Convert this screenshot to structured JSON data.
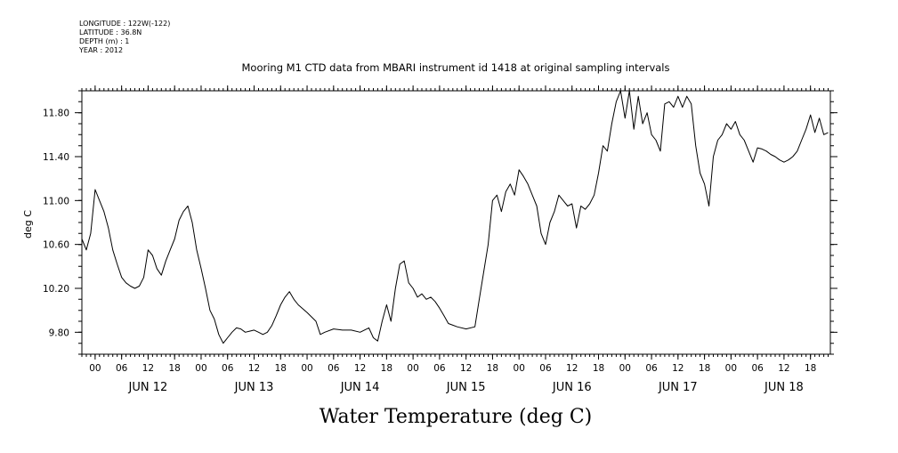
{
  "metadata": {
    "longitude": "LONGITUDE : 122W(-122)",
    "latitude": "LATITUDE : 36.8N",
    "depth": "DEPTH (m) : 1",
    "year": "YEAR : 2012"
  },
  "chart_data": {
    "type": "line",
    "title": "Mooring M1 CTD data from MBARI instrument id 1418 at original sampling intervals",
    "xlabel": "Water Temperature (deg C)",
    "ylabel": "deg C",
    "xlim": [
      "2012-06-11T21:00",
      "2012-06-18T22:30"
    ],
    "ylim": [
      9.6,
      12.0
    ],
    "y_ticks": [
      9.8,
      10.2,
      10.6,
      11.0,
      11.4,
      11.8
    ],
    "y_tick_labels": [
      "9.80",
      "10.20",
      "10.60",
      "11.00",
      "11.40",
      "11.80"
    ],
    "x_hour_ticks": [
      "2012-06-12T00:00",
      "2012-06-12T06:00",
      "2012-06-12T12:00",
      "2012-06-12T18:00",
      "2012-06-13T00:00",
      "2012-06-13T06:00",
      "2012-06-13T12:00",
      "2012-06-13T18:00",
      "2012-06-14T00:00",
      "2012-06-14T06:00",
      "2012-06-14T12:00",
      "2012-06-14T18:00",
      "2012-06-15T00:00",
      "2012-06-15T06:00",
      "2012-06-15T12:00",
      "2012-06-15T18:00",
      "2012-06-16T00:00",
      "2012-06-16T06:00",
      "2012-06-16T12:00",
      "2012-06-16T18:00",
      "2012-06-17T00:00",
      "2012-06-17T06:00",
      "2012-06-17T12:00",
      "2012-06-17T18:00",
      "2012-06-18T00:00",
      "2012-06-18T06:00",
      "2012-06-18T12:00",
      "2012-06-18T18:00"
    ],
    "x_hour_labels": [
      "00",
      "06",
      "12",
      "18",
      "00",
      "06",
      "12",
      "18",
      "00",
      "06",
      "12",
      "18",
      "00",
      "06",
      "12",
      "18",
      "00",
      "06",
      "12",
      "18",
      "00",
      "06",
      "12",
      "18",
      "00",
      "06",
      "12",
      "18"
    ],
    "x_day_ticks": [
      "2012-06-12T12:00",
      "2012-06-13T12:00",
      "2012-06-14T12:00",
      "2012-06-15T12:00",
      "2012-06-16T12:00",
      "2012-06-17T12:00",
      "2012-06-18T12:00"
    ],
    "x_day_labels": [
      "JUN 12",
      "JUN 13",
      "JUN 14",
      "JUN 15",
      "JUN 16",
      "JUN 17",
      "JUN 18"
    ],
    "grid": false,
    "series": [
      {
        "color": "#000000",
        "points": [
          [
            "2012-06-11T21:00",
            10.65
          ],
          [
            "2012-06-11T22:00",
            10.55
          ],
          [
            "2012-06-11T23:00",
            10.7
          ],
          [
            "2012-06-12T00:00",
            11.1
          ],
          [
            "2012-06-12T01:00",
            11.0
          ],
          [
            "2012-06-12T02:00",
            10.9
          ],
          [
            "2012-06-12T03:00",
            10.75
          ],
          [
            "2012-06-12T04:00",
            10.55
          ],
          [
            "2012-06-12T05:00",
            10.42
          ],
          [
            "2012-06-12T06:00",
            10.3
          ],
          [
            "2012-06-12T07:00",
            10.25
          ],
          [
            "2012-06-12T08:00",
            10.22
          ],
          [
            "2012-06-12T09:00",
            10.2
          ],
          [
            "2012-06-12T10:00",
            10.22
          ],
          [
            "2012-06-12T11:00",
            10.3
          ],
          [
            "2012-06-12T12:00",
            10.55
          ],
          [
            "2012-06-12T13:00",
            10.5
          ],
          [
            "2012-06-12T14:00",
            10.38
          ],
          [
            "2012-06-12T15:00",
            10.32
          ],
          [
            "2012-06-12T16:00",
            10.45
          ],
          [
            "2012-06-12T17:00",
            10.55
          ],
          [
            "2012-06-12T18:00",
            10.65
          ],
          [
            "2012-06-12T19:00",
            10.82
          ],
          [
            "2012-06-12T20:00",
            10.9
          ],
          [
            "2012-06-12T21:00",
            10.95
          ],
          [
            "2012-06-12T22:00",
            10.8
          ],
          [
            "2012-06-12T23:00",
            10.55
          ],
          [
            "2012-06-13T00:00",
            10.38
          ],
          [
            "2012-06-13T01:00",
            10.2
          ],
          [
            "2012-06-13T02:00",
            10.0
          ],
          [
            "2012-06-13T03:00",
            9.92
          ],
          [
            "2012-06-13T04:00",
            9.78
          ],
          [
            "2012-06-13T05:00",
            9.7
          ],
          [
            "2012-06-13T06:00",
            9.75
          ],
          [
            "2012-06-13T07:00",
            9.8
          ],
          [
            "2012-06-13T08:00",
            9.84
          ],
          [
            "2012-06-13T09:00",
            9.83
          ],
          [
            "2012-06-13T10:00",
            9.8
          ],
          [
            "2012-06-13T11:00",
            9.81
          ],
          [
            "2012-06-13T12:00",
            9.82
          ],
          [
            "2012-06-13T13:00",
            9.8
          ],
          [
            "2012-06-13T14:00",
            9.78
          ],
          [
            "2012-06-13T15:00",
            9.8
          ],
          [
            "2012-06-13T16:00",
            9.86
          ],
          [
            "2012-06-13T17:00",
            9.95
          ],
          [
            "2012-06-13T18:00",
            10.05
          ],
          [
            "2012-06-13T19:00",
            10.12
          ],
          [
            "2012-06-13T20:00",
            10.17
          ],
          [
            "2012-06-13T21:00",
            10.1
          ],
          [
            "2012-06-13T22:00",
            10.05
          ],
          [
            "2012-06-14T00:00",
            9.98
          ],
          [
            "2012-06-14T02:00",
            9.9
          ],
          [
            "2012-06-14T03:00",
            9.78
          ],
          [
            "2012-06-14T04:00",
            9.8
          ],
          [
            "2012-06-14T06:00",
            9.83
          ],
          [
            "2012-06-14T08:00",
            9.82
          ],
          [
            "2012-06-14T10:00",
            9.82
          ],
          [
            "2012-06-14T12:00",
            9.8
          ],
          [
            "2012-06-14T14:00",
            9.84
          ],
          [
            "2012-06-14T15:00",
            9.75
          ],
          [
            "2012-06-14T16:00",
            9.72
          ],
          [
            "2012-06-14T17:00",
            9.9
          ],
          [
            "2012-06-14T18:00",
            10.05
          ],
          [
            "2012-06-14T19:00",
            9.9
          ],
          [
            "2012-06-14T20:00",
            10.2
          ],
          [
            "2012-06-14T21:00",
            10.42
          ],
          [
            "2012-06-14T22:00",
            10.45
          ],
          [
            "2012-06-14T23:00",
            10.25
          ],
          [
            "2012-06-15T00:00",
            10.2
          ],
          [
            "2012-06-15T01:00",
            10.12
          ],
          [
            "2012-06-15T02:00",
            10.15
          ],
          [
            "2012-06-15T03:00",
            10.1
          ],
          [
            "2012-06-15T04:00",
            10.12
          ],
          [
            "2012-06-15T05:00",
            10.08
          ],
          [
            "2012-06-15T06:00",
            10.02
          ],
          [
            "2012-06-15T07:00",
            9.95
          ],
          [
            "2012-06-15T08:00",
            9.88
          ],
          [
            "2012-06-15T10:00",
            9.85
          ],
          [
            "2012-06-15T12:00",
            9.83
          ],
          [
            "2012-06-15T14:00",
            9.85
          ],
          [
            "2012-06-15T15:00",
            10.1
          ],
          [
            "2012-06-15T16:00",
            10.35
          ],
          [
            "2012-06-15T17:00",
            10.6
          ],
          [
            "2012-06-15T18:00",
            11.0
          ],
          [
            "2012-06-15T19:00",
            11.05
          ],
          [
            "2012-06-15T20:00",
            10.9
          ],
          [
            "2012-06-15T21:00",
            11.08
          ],
          [
            "2012-06-15T22:00",
            11.15
          ],
          [
            "2012-06-15T23:00",
            11.05
          ],
          [
            "2012-06-16T00:00",
            11.28
          ],
          [
            "2012-06-16T01:00",
            11.22
          ],
          [
            "2012-06-16T02:00",
            11.15
          ],
          [
            "2012-06-16T03:00",
            11.05
          ],
          [
            "2012-06-16T04:00",
            10.95
          ],
          [
            "2012-06-16T05:00",
            10.7
          ],
          [
            "2012-06-16T06:00",
            10.6
          ],
          [
            "2012-06-16T07:00",
            10.8
          ],
          [
            "2012-06-16T08:00",
            10.9
          ],
          [
            "2012-06-16T09:00",
            11.05
          ],
          [
            "2012-06-16T10:00",
            11.0
          ],
          [
            "2012-06-16T11:00",
            10.95
          ],
          [
            "2012-06-16T12:00",
            10.97
          ],
          [
            "2012-06-16T13:00",
            10.75
          ],
          [
            "2012-06-16T14:00",
            10.95
          ],
          [
            "2012-06-16T15:00",
            10.92
          ],
          [
            "2012-06-16T16:00",
            10.97
          ],
          [
            "2012-06-16T17:00",
            11.05
          ],
          [
            "2012-06-16T18:00",
            11.25
          ],
          [
            "2012-06-16T19:00",
            11.5
          ],
          [
            "2012-06-16T20:00",
            11.45
          ],
          [
            "2012-06-16T21:00",
            11.7
          ],
          [
            "2012-06-16T22:00",
            11.9
          ],
          [
            "2012-06-16T23:00",
            12.0
          ],
          [
            "2012-06-17T00:00",
            11.75
          ],
          [
            "2012-06-17T01:00",
            12.0
          ],
          [
            "2012-06-17T02:00",
            11.65
          ],
          [
            "2012-06-17T03:00",
            11.95
          ],
          [
            "2012-06-17T04:00",
            11.7
          ],
          [
            "2012-06-17T05:00",
            11.8
          ],
          [
            "2012-06-17T06:00",
            11.6
          ],
          [
            "2012-06-17T07:00",
            11.55
          ],
          [
            "2012-06-17T08:00",
            11.45
          ],
          [
            "2012-06-17T09:00",
            11.88
          ],
          [
            "2012-06-17T10:00",
            11.9
          ],
          [
            "2012-06-17T11:00",
            11.85
          ],
          [
            "2012-06-17T12:00",
            11.95
          ],
          [
            "2012-06-17T13:00",
            11.85
          ],
          [
            "2012-06-17T14:00",
            11.95
          ],
          [
            "2012-06-17T15:00",
            11.88
          ],
          [
            "2012-06-17T16:00",
            11.5
          ],
          [
            "2012-06-17T17:00",
            11.25
          ],
          [
            "2012-06-17T18:00",
            11.15
          ],
          [
            "2012-06-17T19:00",
            10.95
          ],
          [
            "2012-06-17T20:00",
            11.4
          ],
          [
            "2012-06-17T21:00",
            11.55
          ],
          [
            "2012-06-17T22:00",
            11.6
          ],
          [
            "2012-06-17T23:00",
            11.7
          ],
          [
            "2012-06-18T00:00",
            11.65
          ],
          [
            "2012-06-18T01:00",
            11.72
          ],
          [
            "2012-06-18T02:00",
            11.6
          ],
          [
            "2012-06-18T03:00",
            11.55
          ],
          [
            "2012-06-18T04:00",
            11.45
          ],
          [
            "2012-06-18T05:00",
            11.35
          ],
          [
            "2012-06-18T06:00",
            11.48
          ],
          [
            "2012-06-18T07:00",
            11.47
          ],
          [
            "2012-06-18T08:00",
            11.45
          ],
          [
            "2012-06-18T09:00",
            11.42
          ],
          [
            "2012-06-18T10:00",
            11.4
          ],
          [
            "2012-06-18T11:00",
            11.37
          ],
          [
            "2012-06-18T12:00",
            11.35
          ],
          [
            "2012-06-18T13:00",
            11.37
          ],
          [
            "2012-06-18T14:00",
            11.4
          ],
          [
            "2012-06-18T15:00",
            11.45
          ],
          [
            "2012-06-18T16:00",
            11.55
          ],
          [
            "2012-06-18T17:00",
            11.65
          ],
          [
            "2012-06-18T18:00",
            11.78
          ],
          [
            "2012-06-18T19:00",
            11.62
          ],
          [
            "2012-06-18T20:00",
            11.75
          ],
          [
            "2012-06-18T21:00",
            11.6
          ],
          [
            "2012-06-18T22:00",
            11.62
          ]
        ]
      }
    ]
  }
}
